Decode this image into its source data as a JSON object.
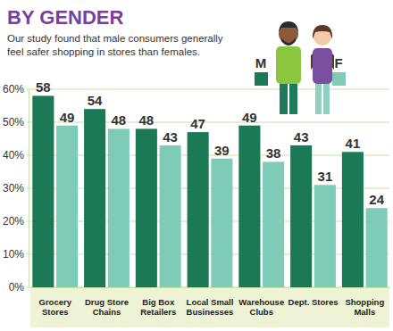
{
  "chart_data": {
    "type": "bar",
    "title": "BY GENDER",
    "subtitle": "Our study found that male consumers generally feel safer shopping in stores than females.",
    "categories": [
      "Grocery Stores",
      "Drug Store Chains",
      "Big Box Retailers",
      "Local Small Businesses",
      "Warehouse Clubs",
      "Dept. Stores",
      "Shopping Malls"
    ],
    "series": [
      {
        "name": "M",
        "color": "#1b7a55",
        "values": [
          58,
          54,
          48,
          47,
          49,
          43,
          41
        ]
      },
      {
        "name": "F",
        "color": "#7ecbb8",
        "values": [
          49,
          48,
          43,
          39,
          38,
          31,
          24
        ]
      }
    ],
    "ylim": [
      0,
      60
    ],
    "yticks": [
      {
        "value": 0,
        "label": "0%"
      },
      {
        "value": 10,
        "label": "10%"
      },
      {
        "value": 20,
        "label": "20%"
      },
      {
        "value": 30,
        "label": "30%"
      },
      {
        "value": 40,
        "label": "40%"
      },
      {
        "value": 50,
        "label": "50%"
      },
      {
        "value": 60,
        "label": "60%"
      }
    ],
    "grid": true,
    "data_labels": true,
    "legend": "top-right"
  }
}
